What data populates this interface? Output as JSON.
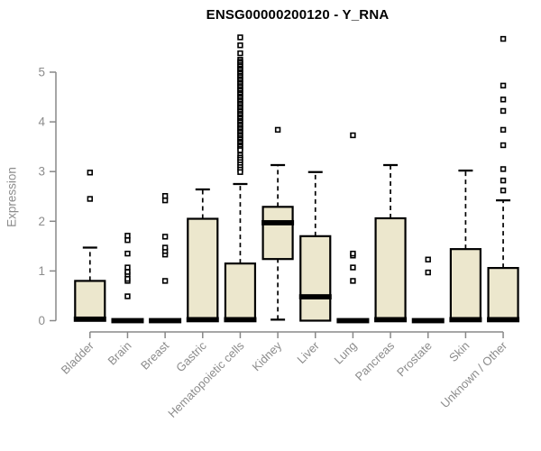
{
  "chart_data": {
    "type": "boxplot",
    "title": "ENSG00000200120 - Y_RNA",
    "ylabel": "Expression",
    "xlabel": "",
    "ylim": [
      0,
      5.8
    ],
    "yticks": [
      0,
      1,
      2,
      3,
      4,
      5
    ],
    "grid": false,
    "legend": "none",
    "box_fill_color": "#ece7cd",
    "box_line_color": "#000000",
    "axis_color": "#888888",
    "label_color": "#8c8c8c",
    "categories": [
      "Bladder",
      "Brain",
      "Breast",
      "Gastric",
      "Hematopoietic cells",
      "Kidney",
      "Liver",
      "Lung",
      "Pancreas",
      "Prostate",
      "Skin",
      "Unknown / Other"
    ],
    "series": [
      {
        "name": "Bladder",
        "whisker_low": 0,
        "q1": 0,
        "median": 0.03,
        "q3": 0.8,
        "whisker_high": 1.47,
        "outliers": [
          2.45,
          2.98
        ]
      },
      {
        "name": "Brain",
        "whisker_low": 0,
        "q1": 0,
        "median": 0,
        "q3": 0,
        "whisker_high": 0,
        "outliers": [
          0.49,
          0.8,
          0.84,
          0.93,
          0.98,
          1.07,
          1.35,
          1.62,
          1.71
        ]
      },
      {
        "name": "Breast",
        "whisker_low": 0,
        "q1": 0,
        "median": 0,
        "q3": 0,
        "whisker_high": 0,
        "outliers": [
          0.8,
          1.33,
          1.4,
          1.47,
          1.69,
          2.42,
          2.51
        ]
      },
      {
        "name": "Gastric",
        "whisker_low": 0,
        "q1": 0,
        "median": 0.02,
        "q3": 2.05,
        "whisker_high": 2.64,
        "outliers": []
      },
      {
        "name": "Hematopoietic cells",
        "whisker_low": 0,
        "q1": 0,
        "median": 0.02,
        "q3": 1.15,
        "whisker_high": 2.75,
        "outliers": [
          5.7,
          5.54,
          5.38,
          5.25,
          5.21,
          5.18,
          5.14,
          5.11,
          5.07,
          5.04,
          5.0,
          4.97,
          4.93,
          4.9,
          4.86,
          4.83,
          4.79,
          4.76,
          4.72,
          4.69,
          4.65,
          4.62,
          4.58,
          4.55,
          4.51,
          4.48,
          4.44,
          4.41,
          4.37,
          4.34,
          4.3,
          4.27,
          4.23,
          4.2,
          4.16,
          4.13,
          4.09,
          4.06,
          4.02,
          3.99,
          3.95,
          3.92,
          3.88,
          3.85,
          3.81,
          3.78,
          3.74,
          3.71,
          3.67,
          3.64,
          3.6,
          3.57,
          3.53,
          3.5,
          3.46,
          3.43,
          3.33,
          3.28,
          3.24,
          3.19,
          3.14,
          3.09,
          3.04,
          2.99
        ]
      },
      {
        "name": "Kidney",
        "whisker_low": 0.02,
        "q1": 1.24,
        "median": 1.97,
        "q3": 2.29,
        "whisker_high": 3.13,
        "outliers": [
          3.84
        ]
      },
      {
        "name": "Liver",
        "whisker_low": 0,
        "q1": 0,
        "median": 0.48,
        "q3": 1.7,
        "whisker_high": 2.99,
        "outliers": []
      },
      {
        "name": "Lung",
        "whisker_low": 0,
        "q1": 0,
        "median": 0,
        "q3": 0,
        "whisker_high": 0,
        "outliers": [
          0.8,
          1.07,
          1.31,
          1.35,
          3.73
        ]
      },
      {
        "name": "Pancreas",
        "whisker_low": 0,
        "q1": 0,
        "median": 0.02,
        "q3": 2.06,
        "whisker_high": 3.13,
        "outliers": []
      },
      {
        "name": "Prostate",
        "whisker_low": 0,
        "q1": 0,
        "median": 0,
        "q3": 0,
        "whisker_high": 0,
        "outliers": [
          0.97,
          1.23
        ]
      },
      {
        "name": "Skin",
        "whisker_low": 0,
        "q1": 0,
        "median": 0.02,
        "q3": 1.44,
        "whisker_high": 3.02,
        "outliers": []
      },
      {
        "name": "Unknown / Other",
        "whisker_low": 0,
        "q1": 0,
        "median": 0.02,
        "q3": 1.06,
        "whisker_high": 2.42,
        "outliers": [
          2.62,
          2.82,
          3.05,
          3.53,
          3.84,
          4.22,
          4.45,
          4.73,
          5.67
        ]
      }
    ]
  }
}
